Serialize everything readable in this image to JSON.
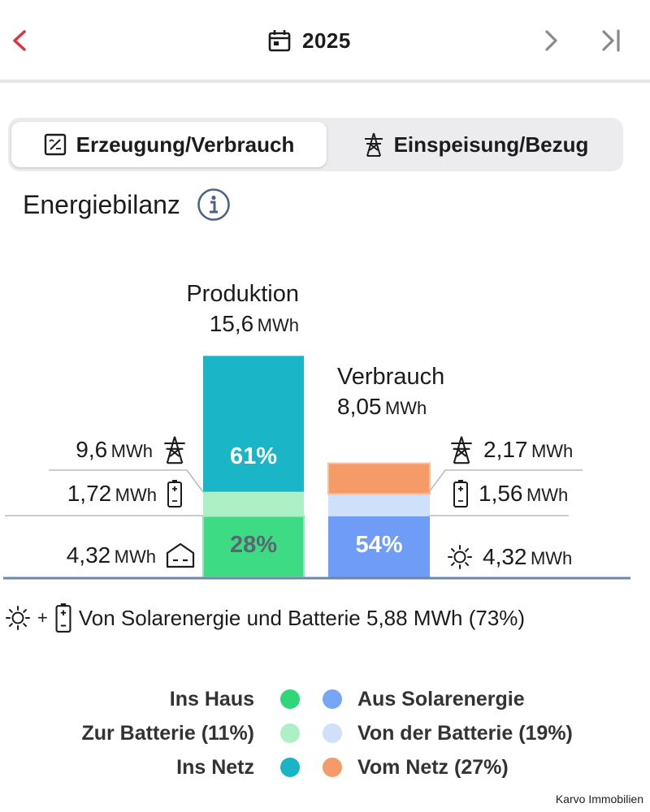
{
  "header": {
    "year": "2025",
    "back_icon": "chevron-left-icon",
    "calendar_icon": "calendar-icon",
    "next_icon": "chevron-right-icon",
    "last_icon": "skip-to-end-icon",
    "accent_color": "#e0323a"
  },
  "tabs": [
    {
      "label": "Erzeugung/Verbrauch",
      "icon": "inverter-icon",
      "selected": true
    },
    {
      "label": "Einspeisung/Bezug",
      "icon": "power-pylon-icon",
      "selected": false
    }
  ],
  "section": {
    "title": "Energiebilanz",
    "info_icon": "info-icon"
  },
  "chart_data": {
    "type": "bar",
    "title": "Energiebilanz",
    "unit": "MWh",
    "ylim": [
      0,
      15.6
    ],
    "bars": [
      {
        "name": "Produktion",
        "total": "15,6",
        "total_value": 15.6,
        "unit": "MWh",
        "segments": [
          {
            "name": "Ins Haus",
            "value": 4.32,
            "label": "4,32",
            "unit": "MWh",
            "percent_label": "28%",
            "color": "#3ddc84",
            "icon": "house-icon"
          },
          {
            "name": "Zur Batterie",
            "value": 1.72,
            "label": "1,72",
            "unit": "MWh",
            "percent_label": "",
            "color": "#aef0c6",
            "icon": "battery-icon"
          },
          {
            "name": "Ins Netz",
            "value": 9.6,
            "label": "9,6",
            "unit": "MWh",
            "percent_label": "61%",
            "color": "#1bb5c8",
            "icon": "power-pylon-icon"
          }
        ]
      },
      {
        "name": "Verbrauch",
        "total": "8,05",
        "total_value": 8.05,
        "unit": "MWh",
        "segments": [
          {
            "name": "Aus Solarenergie",
            "value": 4.32,
            "label": "4,32",
            "unit": "MWh",
            "percent_label": "54%",
            "color": "#6e9cf7",
            "icon": "sun-icon"
          },
          {
            "name": "Von der Batterie",
            "value": 1.56,
            "label": "1,56",
            "unit": "MWh",
            "percent_label": "",
            "color": "#cfe0fb",
            "icon": "battery-icon"
          },
          {
            "name": "Vom Netz",
            "value": 2.17,
            "label": "2,17",
            "unit": "MWh",
            "percent_label": "",
            "color": "#f59b68",
            "icon": "power-pylon-icon"
          }
        ]
      }
    ]
  },
  "solar_note": {
    "plus": "+",
    "text": "Von Solarenergie und Batterie 5,88 MWh (73%)"
  },
  "legend": {
    "left": [
      {
        "label": "Ins Haus",
        "color": "#2fd67a"
      },
      {
        "label": "Zur Batterie (11%)",
        "color": "#aef0c6"
      },
      {
        "label": "Ins Netz",
        "color": "#18b4c8"
      }
    ],
    "right": [
      {
        "label": "Aus Solarenergie",
        "color": "#78a6f7"
      },
      {
        "label": "Von der Batterie (19%)",
        "color": "#cfe0fb"
      },
      {
        "label": "Vom Netz (27%)",
        "color": "#f59b68"
      }
    ]
  },
  "watermark": "Karvo Immobilien"
}
